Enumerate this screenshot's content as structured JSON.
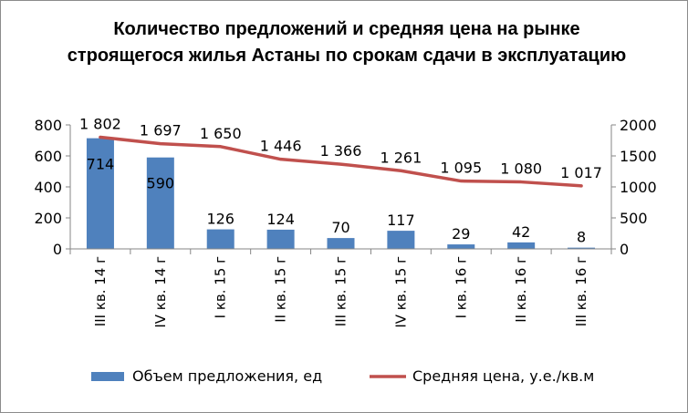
{
  "chart_data": {
    "type": "bar",
    "title": "Количество предложений и средняя цена на рынке строящегося жилья Астаны по срокам сдачи в эксплуатацию",
    "categories": [
      "III кв. 14 г",
      "IV кв. 14 г",
      "I кв. 15 г",
      "II кв. 15 г",
      "III кв. 15 г",
      "IV кв. 15 г",
      "I кв. 16 г",
      "II кв. 16 г",
      "III кв. 16 г"
    ],
    "series": [
      {
        "name": "Объем предложения, ед",
        "kind": "bar",
        "axis": "left",
        "color": "#4f81bd",
        "values": [
          714,
          590,
          126,
          124,
          70,
          117,
          29,
          42,
          8
        ],
        "labels": [
          "714",
          "590",
          "126",
          "124",
          "70",
          "117",
          "29",
          "42",
          "8"
        ]
      },
      {
        "name": "Средняя цена, у.е./кв.м",
        "kind": "line",
        "axis": "right",
        "color": "#c0504d",
        "values": [
          1802,
          1697,
          1650,
          1446,
          1366,
          1261,
          1095,
          1080,
          1017
        ],
        "labels": [
          "1 802",
          "1 697",
          "1 650",
          "1 446",
          "1 366",
          "1 261",
          "1 095",
          "1 080",
          "1 017"
        ]
      }
    ],
    "y_left": {
      "ylim": [
        0,
        800
      ],
      "ticks": [
        "0",
        "200",
        "400",
        "600",
        "800"
      ]
    },
    "y_right": {
      "ylim": [
        0,
        2000
      ],
      "ticks": [
        "0",
        "500",
        "1000",
        "1500",
        "2000"
      ]
    },
    "grid": false,
    "legend": "bottom"
  }
}
